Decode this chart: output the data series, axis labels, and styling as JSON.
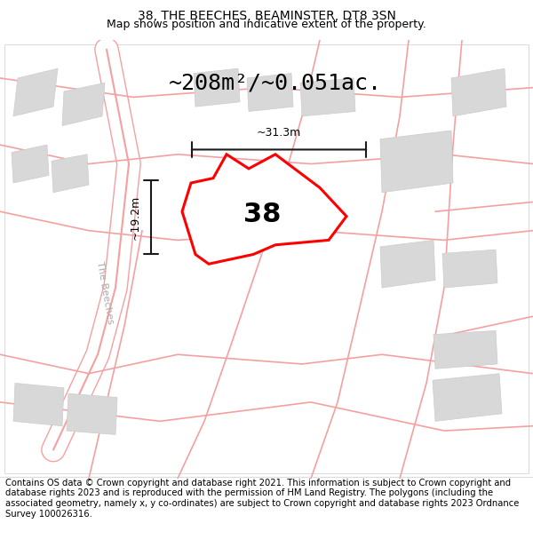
{
  "title": "38, THE BEECHES, BEAMINSTER, DT8 3SN",
  "subtitle": "Map shows position and indicative extent of the property.",
  "area_label": "~208m²/~0.051ac.",
  "width_label": "~31.3m",
  "height_label": "~19.2m",
  "plot_number": "38",
  "footer": "Contains OS data © Crown copyright and database right 2021. This information is subject to Crown copyright and database rights 2023 and is reproduced with the permission of HM Land Registry. The polygons (including the associated geometry, namely x, y co-ordinates) are subject to Crown copyright and database rights 2023 Ordnance Survey 100026316.",
  "bg_color": "#f5f5f0",
  "map_bg": "#ffffff",
  "plot_fill": "#ffffff",
  "plot_edge": "#ff0000",
  "road_color": "#f5a0a0",
  "building_color": "#d8d8d8",
  "building_edge": "#cccccc",
  "dim_line_color": "#1a1a1a",
  "road_label": "The Beeches",
  "title_fontsize": 10,
  "subtitle_fontsize": 9,
  "footer_fontsize": 7.2
}
